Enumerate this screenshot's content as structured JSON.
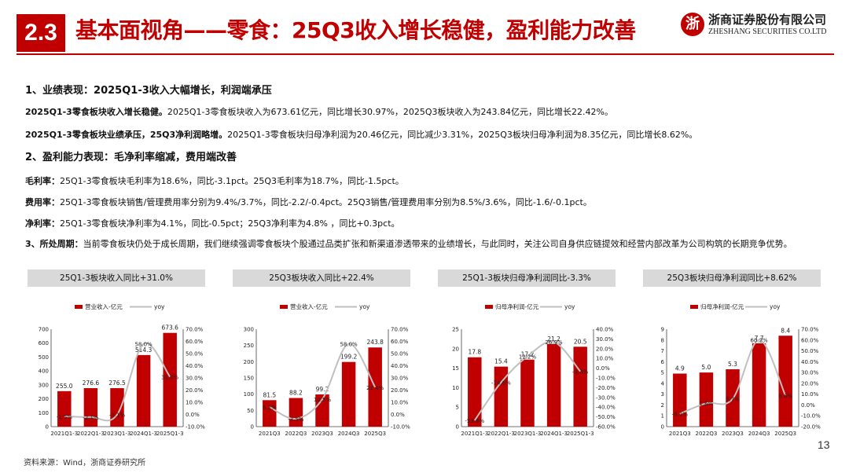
{
  "header": {
    "section_number": "2.3",
    "title": "基本面视角——零食：25Q3收入增长稳健，盈利能力改善",
    "logo_cn": "浙商证券股份有限公司",
    "logo_en": "ZHESHANG SECURITIES CO.LTD"
  },
  "body": {
    "h1": "1、业绩表现：2025Q1-3收入大幅增长，利润端承压",
    "l1_bold": "2025Q1-3零食板块收入增长稳健。",
    "l1_text": "2025Q1-3零食板块收入为673.61亿元，同比增长30.97%，2025Q3板块收入为243.84亿元，同比增长22.42%。",
    "l2_bold": "2025Q1-3零食板块业绩承压，25Q3净利润略增。",
    "l2_text": "2025Q1-3零食板块归母净利润为20.46亿元，同比减少3.31%，2025Q3板块归母净利润为8.35亿元，同比增长8.62%。",
    "h2": "2、盈利能力表现：毛净利率缩减，费用端改善",
    "m1_bold": "毛利率：",
    "m1_text": "25Q1-3零食板块毛利率为18.6%，同比-3.1pct。25Q3毛利率为18.7%，同比-1.5pct。",
    "m2_bold": "费用率：",
    "m2_text": "25Q1-3零食板块销售/管理费用率分别为9.4%/3.7%，同比-2.2/-0.4pct。25Q3销售/管理费用率分别为8.5%/3.6%，同比-1.6/-0.1pct。",
    "m3_bold": "净利率：",
    "m3_text": "25Q1-3零食板块净利率为4.1%，同比-0.5pct；25Q3净利率为4.8% ，同比+0.3pct。",
    "p3_bold": "3、所处周期：",
    "p3_text": "当前零食板块仍处于成长周期，我们继续强调零食板块个股通过品类扩张和新渠道渗透带来的业绩增长，与此同时，关注公司自身供应链提效和经营内部改革为公司构筑的长期竞争优势。"
  },
  "colors": {
    "brand": "#c00000",
    "bar": "#c00000",
    "line": "#bfbfbf",
    "header_bg": "#d9d9d9"
  },
  "chart_data": [
    {
      "type": "bar",
      "panel_title": "25Q1-3板块收入同比+31.0%",
      "legend": [
        "营业收入-亿元",
        "yoy"
      ],
      "categories": [
        "2021Q1-3",
        "2022Q1-3",
        "2023Q1-3",
        "2024Q1-3",
        "2025Q1-3"
      ],
      "values": [
        255.0,
        276.6,
        276.5,
        514.3,
        673.6
      ],
      "value_labels": [
        "255.0",
        "276.6",
        "276.5",
        "514.3",
        "673.6"
      ],
      "yoy": [
        -1.5,
        -2.1,
        -0.1,
        58.0,
        31.0
      ],
      "yoy_labels": [
        "-1.5%",
        "-2.1%",
        "-0.1%",
        "58.0%",
        "31.0%"
      ],
      "left_ticks": [
        "0",
        "100",
        "200",
        "300",
        "400",
        "500",
        "600",
        "700"
      ],
      "left_range": [
        0,
        700
      ],
      "right_ticks": [
        "-10.0%",
        "0.0%",
        "10.0%",
        "20.0%",
        "30.0%",
        "40.0%",
        "50.0%",
        "60.0%",
        "70.0%"
      ],
      "right_range": [
        -10,
        70
      ]
    },
    {
      "type": "bar",
      "panel_title": "25Q3板块收入同比+22.4%",
      "legend": [
        "营业收入-亿元",
        "yoy"
      ],
      "categories": [
        "2021Q3",
        "2022Q3",
        "2023Q3",
        "2024Q3",
        "2025Q3"
      ],
      "values": [
        81.5,
        88.2,
        99.2,
        199.2,
        243.8
      ],
      "value_labels": [
        "81.5",
        "88.2",
        "99.2",
        "199.2",
        "243.8"
      ],
      "yoy": [
        6.2,
        -3.5,
        12.5,
        58.0,
        22.4
      ],
      "yoy_labels": [
        "6.2%",
        "-3.5%",
        "12.5%",
        "58.0%",
        "22.4%"
      ],
      "left_ticks": [
        "0",
        "50",
        "100",
        "150",
        "200",
        "250",
        "300"
      ],
      "left_range": [
        0,
        300
      ],
      "right_ticks": [
        "-10.0%",
        "0.0%",
        "10.0%",
        "20.0%",
        "30.0%",
        "40.0%",
        "50.0%",
        "60.0%",
        "70.0%"
      ],
      "right_range": [
        -10,
        70
      ]
    },
    {
      "type": "bar",
      "panel_title": "25Q1-3板块归母净利润同比-3.3%",
      "legend": [
        "归母净利润-亿元",
        "yoy"
      ],
      "categories": [
        "2021Q1-3",
        "2022Q1-3",
        "2023Q1-3",
        "2024Q1-3",
        "2025Q1-3"
      ],
      "values": [
        17.8,
        15.4,
        17.2,
        21.2,
        20.5
      ],
      "value_labels": [
        "17.8",
        "15.4",
        "17.2",
        "21.2",
        "20.5"
      ],
      "yoy": [
        -53.6,
        -14.6,
        12.2,
        26.9,
        -3.3
      ],
      "yoy_labels": [
        "-53.6%",
        "-14.6%",
        "12.2%",
        "26.9%",
        "-3.3%"
      ],
      "left_ticks": [
        "0",
        "5",
        "10",
        "15",
        "20",
        "25"
      ],
      "left_range": [
        0,
        25
      ],
      "right_ticks": [
        "-60.0%",
        "-50.0%",
        "-40.0%",
        "-30.0%",
        "-20.0%",
        "-10.0%",
        "0.0%",
        "10.0%",
        "20.0%",
        "30.0%",
        "40.0%"
      ],
      "right_range": [
        -60,
        40
      ]
    },
    {
      "type": "bar",
      "panel_title": "25Q3板块归母净利润同比+8.62%",
      "legend": [
        "归母净利润-亿元",
        "yoy"
      ],
      "categories": [
        "2021Q3",
        "2022Q3",
        "2023Q3",
        "2024Q3",
        "2025Q3"
      ],
      "values": [
        4.9,
        5.0,
        5.3,
        7.7,
        8.4
      ],
      "value_labels": [
        "4.9",
        "5.0",
        "5.3",
        "7.7",
        "8.4"
      ],
      "yoy": [
        -8.1,
        1.6,
        5.7,
        60.2,
        8.6
      ],
      "yoy_labels": [
        "-8.1%",
        "1.6%",
        "5.7%",
        "60.2%",
        "8.6%"
      ],
      "left_ticks": [
        "0",
        "1",
        "2",
        "3",
        "4",
        "5",
        "6",
        "7",
        "8",
        "9"
      ],
      "left_range": [
        0,
        9
      ],
      "right_ticks": [
        "-20.0%",
        "-10.0%",
        "0.0%",
        "10.0%",
        "20.0%",
        "30.0%",
        "40.0%",
        "50.0%",
        "60.0%",
        "70.0%"
      ],
      "right_range": [
        -20,
        70
      ]
    }
  ],
  "footer": {
    "source": "资料来源：Wind，浙商证券研究所",
    "page_number": "13"
  }
}
